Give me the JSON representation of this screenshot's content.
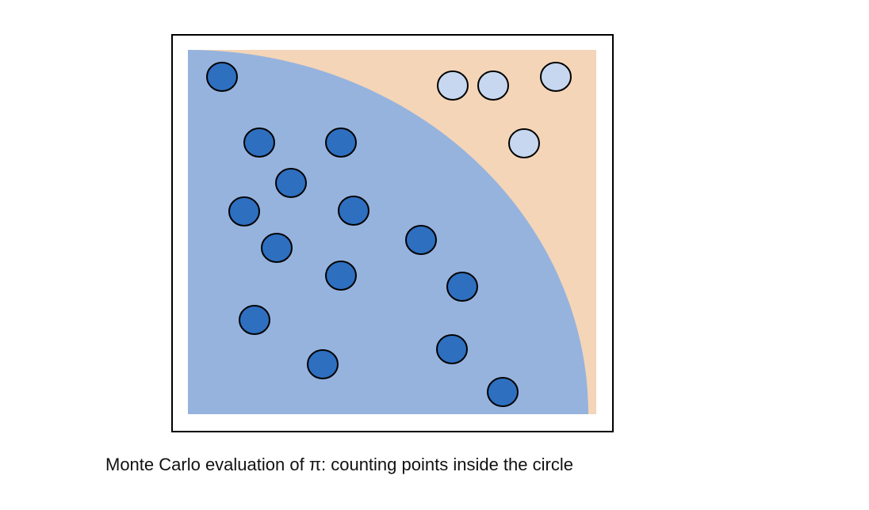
{
  "caption": "Monte Carlo evaluation of π: counting points inside the circle"
}
